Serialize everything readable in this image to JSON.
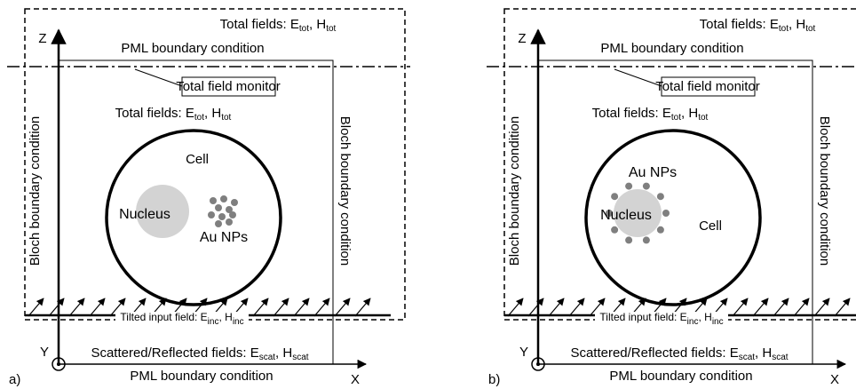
{
  "panels": [
    {
      "label": "a)",
      "outer_fields": [
        "Total fields: E",
        "tot",
        ", H",
        "tot"
      ],
      "pml_top": "PML boundary condition",
      "monitor": "Total field monitor",
      "inner_fields": [
        "Total fields: E",
        "tot",
        ", H",
        "tot"
      ],
      "bloch_left": "Bloch boundary condition",
      "bloch_right": "Bloch boundary condition",
      "cell": "Cell",
      "nucleus": "Nucleus",
      "au_nps": "Au NPs",
      "tilted_input": [
        "Tilted input field: E",
        "inc",
        ", H",
        "inc"
      ],
      "scattered": [
        "Scattered/Reflected fields: E",
        "scat",
        ", H",
        "scat"
      ],
      "pml_bottom": "PML boundary condition",
      "axis_z": "Z",
      "axis_x": "X",
      "axis_y": "Y"
    },
    {
      "label": "b)",
      "outer_fields": [
        "Total fields: E",
        "tot",
        ", H",
        "tot"
      ],
      "pml_top": "PML boundary condition",
      "monitor": "Total field monitor",
      "inner_fields": [
        "Total fields: E",
        "tot",
        ", H",
        "tot"
      ],
      "bloch_left": "Bloch boundary condition",
      "bloch_right": "Bloch boundary condition",
      "cell": "Cell",
      "nucleus": "Nucleus",
      "au_nps": "Au NPs",
      "tilted_input": [
        "Tilted input field: E",
        "inc",
        ", H",
        "inc"
      ],
      "scattered": [
        "Scattered/Reflected fields: E",
        "scat",
        ", H",
        "scat"
      ],
      "pml_bottom": "PML boundary condition",
      "axis_z": "Z",
      "axis_x": "X",
      "axis_y": "Y"
    }
  ]
}
